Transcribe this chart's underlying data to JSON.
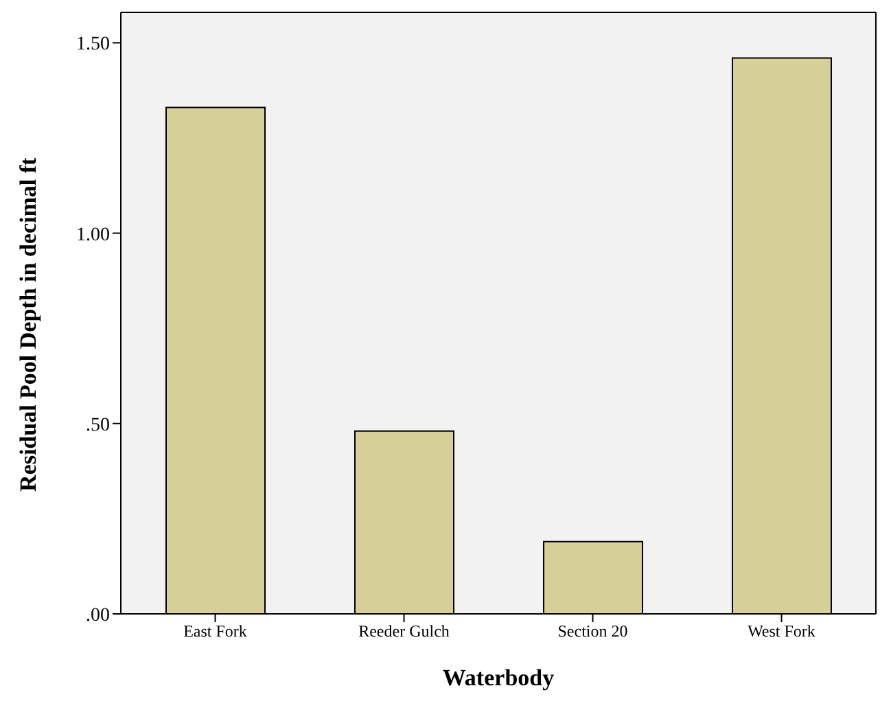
{
  "chart_data": {
    "type": "bar",
    "xlabel": "Waterbody",
    "ylabel": "Residual Pool Depth in decimal ft",
    "categories": [
      "East Fork",
      "Reeder Gulch",
      "Section 20",
      "West Fork"
    ],
    "values": [
      1.33,
      0.48,
      0.19,
      1.46
    ],
    "color": "#d6cf97",
    "ylim": [
      0,
      1.58
    ],
    "yticks": [
      {
        "value": 0,
        "label": ".00"
      },
      {
        "value": 0.5,
        "label": ".50"
      },
      {
        "value": 1,
        "label": "1.00"
      },
      {
        "value": 1.5,
        "label": "1.50"
      }
    ],
    "grid": false,
    "legend": false
  }
}
